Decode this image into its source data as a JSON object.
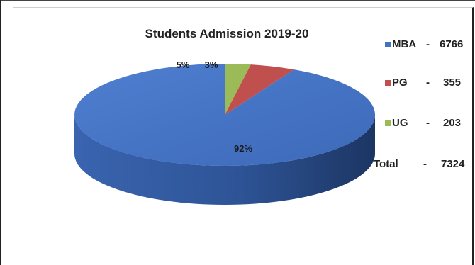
{
  "chart_data": {
    "type": "pie",
    "title": "Students Admission 2019-20",
    "categories": [
      "MBA",
      "PG",
      "UG"
    ],
    "values": [
      6766,
      355,
      203
    ],
    "percent_labels": [
      "92%",
      "5%",
      "3%"
    ],
    "colors": [
      "#4472c4",
      "#c0504d",
      "#9bbb59"
    ],
    "legend_placement": "right",
    "legend": [
      {
        "name": "MBA",
        "dash": "-",
        "value": "6766"
      },
      {
        "name": "PG",
        "dash": "-",
        "value": "355"
      },
      {
        "name": "UG",
        "dash": "-",
        "value": "203"
      }
    ],
    "total": {
      "name": "Total",
      "dash": "-",
      "value": "7324"
    },
    "style": "3d"
  }
}
